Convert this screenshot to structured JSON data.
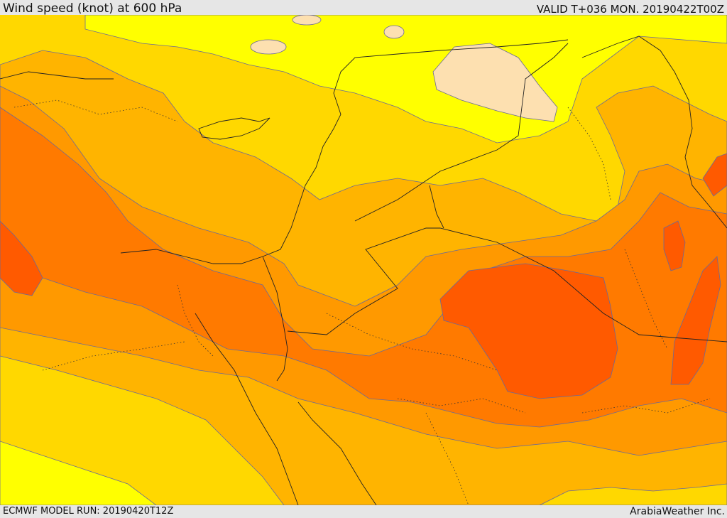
{
  "header": {
    "title": "Wind speed (knot) at 600 hPa",
    "valid": "VALID T+036 MON. 20190422T00Z"
  },
  "footer": {
    "model_run": "ECMWF MODEL RUN: 20190420T12Z",
    "credit": "ArabiaWeather Inc."
  },
  "colors": {
    "very_light": "#fde0b0",
    "lightest": "#ffff00",
    "light": "#ffd800",
    "medium": "#ffb400",
    "strong": "#ff9900",
    "stronger": "#ff7a00",
    "strongest": "#ff5a00",
    "contour": "#6a6a99",
    "border": "#222222"
  }
}
